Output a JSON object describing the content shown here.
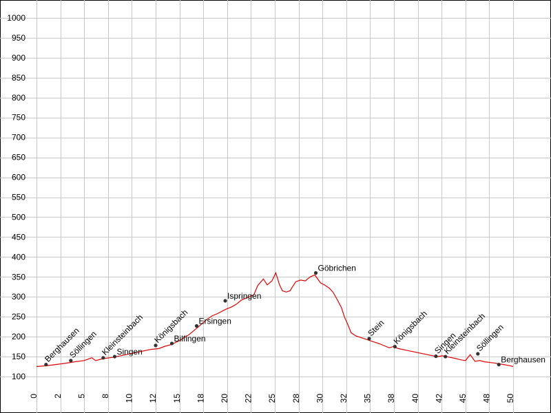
{
  "chart_data": {
    "type": "line",
    "title": "",
    "xlabel": "",
    "ylabel": "",
    "xlim": [
      0,
      50
    ],
    "ylim": [
      100,
      1000
    ],
    "grid": true,
    "x_ticks": [
      0,
      2,
      5,
      8,
      10,
      12,
      15,
      18,
      20,
      22,
      25,
      28,
      30,
      32,
      35,
      38,
      40,
      42,
      45,
      48,
      50
    ],
    "x_tick_labels": [
      "0",
      "2",
      "5",
      "8",
      "10",
      "12",
      "15",
      "18",
      "20",
      "22",
      "25",
      "28",
      "30",
      "32",
      "35",
      "38",
      "40",
      "42",
      "45",
      "48",
      "50"
    ],
    "y_ticks": [
      100,
      150,
      200,
      250,
      300,
      350,
      400,
      450,
      500,
      550,
      600,
      650,
      700,
      750,
      800,
      850,
      900,
      950,
      1000
    ],
    "y_tick_labels": [
      "100",
      "150",
      "200",
      "250",
      "300",
      "350",
      "400",
      "450",
      "500",
      "550",
      "600",
      "650",
      "700",
      "750",
      "800",
      "850",
      "900",
      "950",
      "1000"
    ],
    "line_color": "#e00000",
    "series": [
      {
        "x": [
          0,
          1,
          2,
          3,
          4,
          5,
          5.8,
          6.2,
          7,
          8,
          9,
          10,
          11,
          12,
          12.8,
          13.5,
          14.1,
          15,
          16,
          17,
          17.8,
          18.4,
          19,
          19.8,
          20.5,
          21,
          21.5,
          22,
          22.8,
          23.2,
          23.8,
          24.2,
          24.7,
          25.1,
          25.5,
          25.8,
          26.2,
          26.6,
          27.2,
          27.7,
          28.2,
          28.7,
          29.2,
          29.4,
          29.8,
          30.2,
          30.7,
          31.1,
          31.5,
          32,
          32.3,
          32.7,
          33,
          33.5,
          34,
          34.5,
          35,
          35.5,
          36,
          37,
          37.4,
          38,
          39,
          40,
          41,
          42,
          42.6,
          43,
          43.4,
          44,
          44.5,
          45,
          45.5,
          46,
          46.5,
          47,
          48,
          49,
          49.5,
          50
        ],
        "y": [
          125,
          127,
          130,
          133,
          137,
          140,
          147,
          140,
          145,
          148,
          153,
          158,
          163,
          168,
          170,
          176,
          180,
          190,
          205,
          225,
          242,
          252,
          258,
          268,
          275,
          282,
          292,
          297,
          305,
          328,
          345,
          330,
          340,
          360,
          330,
          315,
          312,
          315,
          338,
          342,
          340,
          350,
          355,
          348,
          335,
          330,
          322,
          312,
          295,
          272,
          250,
          228,
          210,
          202,
          198,
          194,
          190,
          186,
          182,
          172,
          175,
          170,
          165,
          160,
          155,
          150,
          152,
          150,
          148,
          145,
          142,
          140,
          155,
          138,
          140,
          137,
          134,
          130,
          128,
          125
        ]
      }
    ],
    "markers": [
      {
        "name": "Berghausen",
        "x": 1.0,
        "y": 130
      },
      {
        "name": "Söllingen",
        "x": 3.6,
        "y": 140
      },
      {
        "name": "Kleinsteinbach",
        "x": 7.0,
        "y": 147
      },
      {
        "name": "Singen",
        "x": 8.2,
        "y": 150
      },
      {
        "name": "Königsbach",
        "x": 12.5,
        "y": 178
      },
      {
        "name": "Bilfingen",
        "x": 14.2,
        "y": 183
      },
      {
        "name": "Ersingen",
        "x": 16.8,
        "y": 227
      },
      {
        "name": "Ispringen",
        "x": 19.8,
        "y": 290
      },
      {
        "name": "Göbrichen",
        "x": 29.3,
        "y": 360
      },
      {
        "name": "Stein",
        "x": 34.9,
        "y": 195
      },
      {
        "name": "Königsbach",
        "x": 37.6,
        "y": 175
      },
      {
        "name": "Singen",
        "x": 41.9,
        "y": 151
      },
      {
        "name": "Kleinsteinbach",
        "x": 42.9,
        "y": 150
      },
      {
        "name": "Söllingen",
        "x": 46.3,
        "y": 157
      },
      {
        "name": "Berghausen",
        "x": 48.5,
        "y": 130
      }
    ]
  }
}
